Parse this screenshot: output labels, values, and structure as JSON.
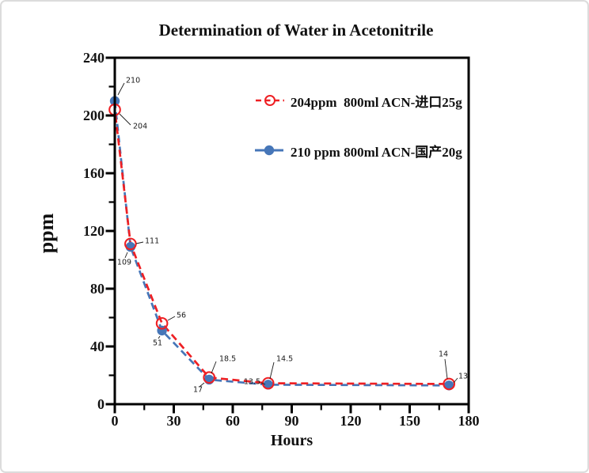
{
  "window": {
    "background": "#ffffff",
    "border_color": "#dcdcdc"
  },
  "chart": {
    "title": "Determination of Water in Acetonitrile",
    "xlabel": "Hours",
    "ylabel": "ppm"
  },
  "chart_data": {
    "type": "line",
    "title": "Determination of Water in Acetonitrile",
    "xlabel": "Hours",
    "ylabel": "ppm",
    "xlim": [
      0,
      180
    ],
    "ylim": [
      0,
      240
    ],
    "x_major_ticks": [
      0,
      30,
      60,
      90,
      120,
      150,
      180
    ],
    "x_minor_ticks": [
      15,
      45,
      75,
      105,
      135,
      165
    ],
    "y_major_ticks": [
      0,
      40,
      80,
      120,
      160,
      200,
      240
    ],
    "y_minor_ticks": [
      20,
      60,
      100,
      140,
      180,
      220
    ],
    "grid": false,
    "legend_position": "inside-upper-right",
    "x": [
      0,
      8,
      24,
      48,
      78,
      170
    ],
    "series": [
      {
        "name": "204ppm  800ml ACN-进口25g",
        "values": [
          204,
          111,
          56,
          18.5,
          14.5,
          14
        ],
        "point_labels": [
          "204",
          "111",
          "56",
          "18.5",
          "14.5",
          "14"
        ],
        "color": "#ee2024",
        "marker": "open-circle",
        "line_style": "dashed"
      },
      {
        "name": "210 ppm 800ml ACN-国产20g",
        "values": [
          210,
          109,
          51,
          17,
          13.5,
          13
        ],
        "point_labels": [
          "210",
          "109",
          "51",
          "17",
          "13.5",
          "13"
        ],
        "color": "#4676b8",
        "marker": "filled-circle",
        "line_style": "dashed"
      }
    ],
    "axis_color": "#000000",
    "label_color": "#1a1a1a"
  }
}
